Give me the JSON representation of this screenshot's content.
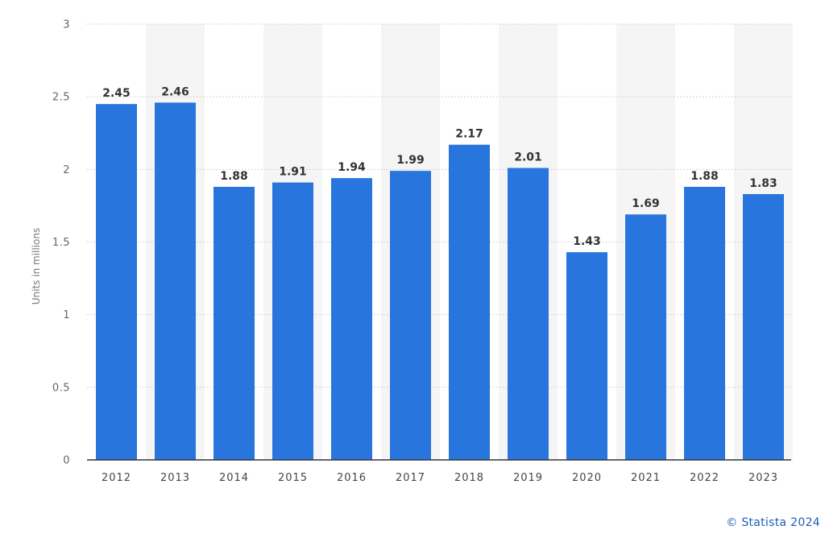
{
  "chart_data": {
    "type": "bar",
    "categories": [
      "2012",
      "2013",
      "2014",
      "2015",
      "2016",
      "2017",
      "2018",
      "2019",
      "2020",
      "2021",
      "2022",
      "2023"
    ],
    "values": [
      2.45,
      2.46,
      1.88,
      1.91,
      1.94,
      1.99,
      2.17,
      2.01,
      1.43,
      1.69,
      1.88,
      1.83
    ],
    "data_labels": [
      "2.45",
      "2.46",
      "1.88",
      "1.91",
      "1.94",
      "1.99",
      "2.17",
      "2.01",
      "1.43",
      "1.69",
      "1.88",
      "1.83"
    ],
    "ylabel": "Units in millions",
    "xlabel": "",
    "ylim": [
      0,
      3
    ],
    "yticks": [
      0,
      0.5,
      1,
      1.5,
      2,
      2.5,
      3
    ],
    "ytick_labels": [
      "0",
      "0.5",
      "1",
      "1.5",
      "2",
      "2.5",
      "3"
    ],
    "grid": "dotted horizontal",
    "bar_color": "#2876dd",
    "band_color": "#f5f5f5"
  },
  "credit": "© Statista 2024"
}
